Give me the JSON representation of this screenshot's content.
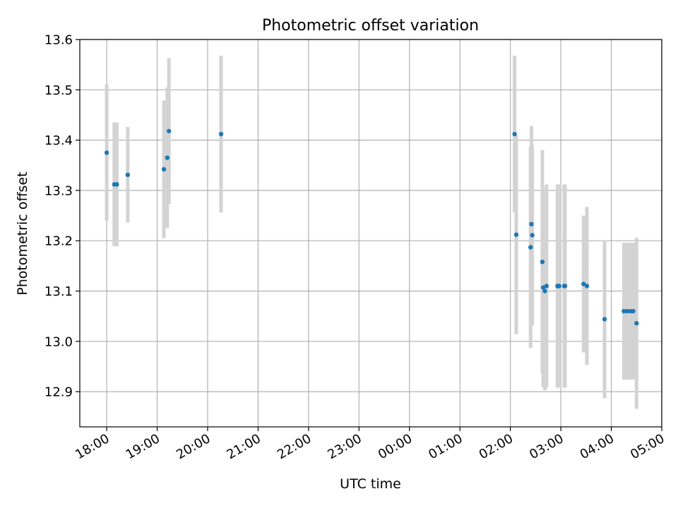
{
  "chart_data": {
    "type": "scatter",
    "title": "Photometric offset variation",
    "xlabel": "UTC time",
    "ylabel": "Photometric offset",
    "grid": true,
    "x_axis": {
      "kind": "time",
      "range": [
        "17:28",
        "05:00"
      ],
      "ticks": [
        "18:00",
        "19:00",
        "20:00",
        "21:00",
        "22:00",
        "23:00",
        "00:00",
        "01:00",
        "02:00",
        "03:00",
        "04:00",
        "05:00"
      ]
    },
    "y_axis": {
      "range": [
        12.83,
        13.6
      ],
      "ticks": [
        "12.9",
        "13.0",
        "13.1",
        "13.2",
        "13.3",
        "13.4",
        "13.5",
        "13.6"
      ]
    },
    "colors": {
      "marker": "#1f77b4",
      "errorbar": "#d3d3d3",
      "grid": "#b0b0b0"
    },
    "series": [
      {
        "points": [
          {
            "t": "18:00",
            "y": 13.375,
            "err": 0.135
          },
          {
            "t": "18:09",
            "y": 13.312,
            "err": 0.123
          },
          {
            "t": "18:12",
            "y": 13.312,
            "err": 0.123
          },
          {
            "t": "18:25",
            "y": 13.331,
            "err": 0.095
          },
          {
            "t": "19:08",
            "y": 13.342,
            "err": 0.137
          },
          {
            "t": "19:12",
            "y": 13.365,
            "err": 0.14
          },
          {
            "t": "19:14",
            "y": 13.418,
            "err": 0.145
          },
          {
            "t": "20:16",
            "y": 13.412,
            "err": 0.156
          },
          {
            "t": "02:05",
            "y": 13.412,
            "err": 0.156
          },
          {
            "t": "02:07",
            "y": 13.212,
            "err": 0.198
          },
          {
            "t": "02:24",
            "y": 13.187,
            "err": 0.2
          },
          {
            "t": "02:25",
            "y": 13.233,
            "err": 0.195
          },
          {
            "t": "02:26",
            "y": 13.211,
            "err": 0.18
          },
          {
            "t": "02:38",
            "y": 13.158,
            "err": 0.222
          },
          {
            "t": "02:39",
            "y": 13.107,
            "err": 0.198
          },
          {
            "t": "02:41",
            "y": 13.1,
            "err": 0.197
          },
          {
            "t": "02:43",
            "y": 13.11,
            "err": 0.202
          },
          {
            "t": "02:56",
            "y": 13.11,
            "err": 0.202
          },
          {
            "t": "02:58",
            "y": 13.11,
            "err": 0.202
          },
          {
            "t": "03:04",
            "y": 13.11,
            "err": 0.202
          },
          {
            "t": "03:05",
            "y": 13.11,
            "err": 0.202
          },
          {
            "t": "03:27",
            "y": 13.114,
            "err": 0.136
          },
          {
            "t": "03:31",
            "y": 13.11,
            "err": 0.157
          },
          {
            "t": "03:52",
            "y": 13.044,
            "err": 0.157
          },
          {
            "t": "04:15",
            "y": 13.06,
            "err": 0.136
          },
          {
            "t": "04:19",
            "y": 13.06,
            "err": 0.136
          },
          {
            "t": "04:23",
            "y": 13.06,
            "err": 0.136
          },
          {
            "t": "04:26",
            "y": 13.06,
            "err": 0.136
          },
          {
            "t": "04:30",
            "y": 13.036,
            "err": 0.17
          }
        ]
      }
    ]
  }
}
